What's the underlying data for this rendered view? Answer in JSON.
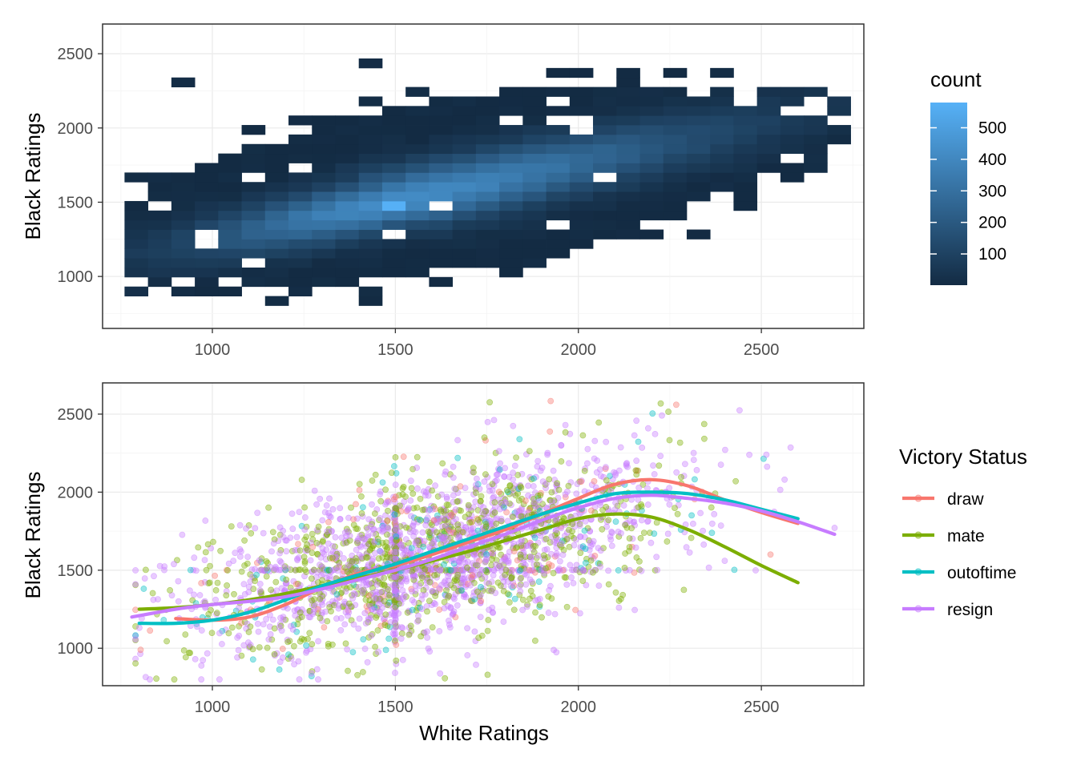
{
  "chart_data": [
    {
      "type": "heatmap",
      "title": "",
      "xlabel": "",
      "ylabel": "Black Ratings",
      "xlim": [
        700,
        2780
      ],
      "ylim": [
        650,
        2700
      ],
      "xticks": [
        1000,
        1500,
        2000,
        2500
      ],
      "xtick_labels": [
        "1000",
        "1500",
        "2000",
        "2500"
      ],
      "yticks": [
        1000,
        1500,
        2000,
        2500
      ],
      "ytick_labels": [
        "1000",
        "1500",
        "2000",
        "2500"
      ],
      "bin_width": 64,
      "grid": true,
      "legend": {
        "title": "count",
        "position": "right",
        "ticks": [
          100,
          200,
          300,
          400,
          500
        ],
        "tick_labels": [
          "100",
          "200",
          "300",
          "400",
          "500"
        ],
        "range": [
          1,
          580
        ],
        "low_color": "#132B43",
        "high_color": "#56B1F7"
      },
      "peak": {
        "x": 1490,
        "y": 1500,
        "count": 580
      },
      "density_ridge": {
        "slope": 0.55,
        "spread_perp": 140,
        "spread_along": 320
      }
    },
    {
      "type": "scatter",
      "title": "",
      "xlabel": "White Ratings",
      "ylabel": "Black Ratings",
      "xlim": [
        700,
        2780
      ],
      "ylim": [
        760,
        2700
      ],
      "xticks": [
        1000,
        1500,
        2000,
        2500
      ],
      "xtick_labels": [
        "1000",
        "1500",
        "2000",
        "2500"
      ],
      "yticks": [
        1000,
        1500,
        2000,
        2500
      ],
      "ytick_labels": [
        "1000",
        "1500",
        "2000",
        "2500"
      ],
      "grid": true,
      "point_alpha": 0.4,
      "legend": {
        "title": "Victory Status",
        "position": "right"
      },
      "series": [
        {
          "name": "draw",
          "color": "#F8766D",
          "smooth_x": [
            900,
            1000,
            1100,
            1200,
            1300,
            1400,
            1500,
            1600,
            1700,
            1800,
            1900,
            2000,
            2100,
            2200,
            2300,
            2400,
            2500,
            2600
          ],
          "smooth_y": [
            1190,
            1180,
            1200,
            1280,
            1390,
            1480,
            1530,
            1600,
            1680,
            1760,
            1860,
            1960,
            2050,
            2080,
            2040,
            1950,
            1870,
            1800
          ]
        },
        {
          "name": "mate",
          "color": "#7CAE00",
          "smooth_x": [
            800,
            900,
            1000,
            1100,
            1200,
            1300,
            1400,
            1500,
            1600,
            1700,
            1800,
            1900,
            2000,
            2100,
            2200,
            2300,
            2400,
            2500,
            2600
          ],
          "smooth_y": [
            1250,
            1260,
            1280,
            1310,
            1350,
            1400,
            1450,
            1500,
            1560,
            1620,
            1690,
            1760,
            1830,
            1860,
            1840,
            1760,
            1650,
            1530,
            1420
          ]
        },
        {
          "name": "outoftime",
          "color": "#00BFC4",
          "smooth_x": [
            800,
            900,
            1000,
            1100,
            1200,
            1300,
            1400,
            1500,
            1600,
            1700,
            1800,
            1900,
            2000,
            2100,
            2200,
            2300,
            2400,
            2500,
            2600
          ],
          "smooth_y": [
            1160,
            1160,
            1180,
            1230,
            1310,
            1400,
            1470,
            1540,
            1620,
            1700,
            1780,
            1860,
            1930,
            1990,
            2000,
            1990,
            1950,
            1890,
            1830
          ]
        },
        {
          "name": "resign",
          "color": "#C77CFF",
          "smooth_x": [
            780,
            900,
            1000,
            1100,
            1200,
            1300,
            1400,
            1500,
            1600,
            1700,
            1800,
            1900,
            2000,
            2100,
            2200,
            2300,
            2400,
            2500,
            2600,
            2700
          ],
          "smooth_y": [
            1200,
            1250,
            1280,
            1300,
            1330,
            1380,
            1440,
            1500,
            1570,
            1650,
            1730,
            1820,
            1900,
            1960,
            1980,
            1960,
            1930,
            1880,
            1810,
            1730
          ]
        }
      ]
    }
  ]
}
